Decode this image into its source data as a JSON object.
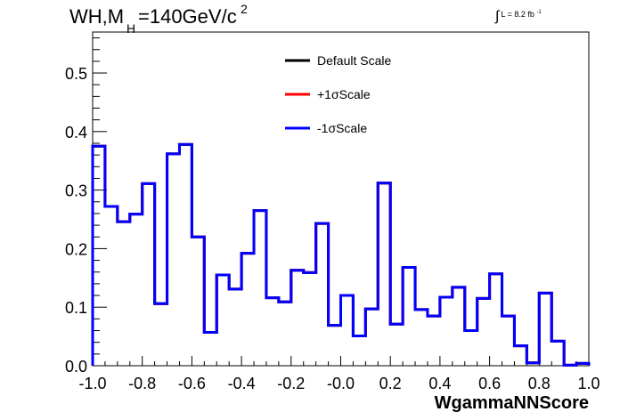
{
  "header": {
    "title_main": "WH,M",
    "title_sub": "H",
    "title_rest": "=140GeV/c",
    "title_sup": "2",
    "lumi_label": "L = 8.2 fb",
    "lumi_sup": "-1"
  },
  "chart_data": {
    "type": "line",
    "xlabel": "WgammaNNScore",
    "ylabel": "",
    "xlim": [
      -1.0,
      1.0
    ],
    "ylim": [
      0.0,
      0.57
    ],
    "grid": false,
    "legend_position": "top-right",
    "x_ticks": [
      "-1.0",
      "-0.8",
      "-0.6",
      "-0.4",
      "-0.2",
      "-0.0",
      "0.2",
      "0.4",
      "0.6",
      "0.8",
      "1.0"
    ],
    "y_ticks": [
      "0.0",
      "0.1",
      "0.2",
      "0.3",
      "0.4",
      "0.5"
    ],
    "bin_edges": [
      -1.0,
      -0.95,
      -0.9,
      -0.85,
      -0.8,
      -0.75,
      -0.7,
      -0.65,
      -0.6,
      -0.55,
      -0.5,
      -0.45,
      -0.4,
      -0.35,
      -0.3,
      -0.25,
      -0.2,
      -0.15,
      -0.1,
      -0.05,
      0.0,
      0.05,
      0.1,
      0.15,
      0.2,
      0.25,
      0.3,
      0.35,
      0.4,
      0.45,
      0.5,
      0.55,
      0.6,
      0.65,
      0.7,
      0.75,
      0.8,
      0.85,
      0.9,
      0.95,
      1.0
    ],
    "series": [
      {
        "name": "Default Scale",
        "color": "#000000",
        "values": [
          0.375,
          0.272,
          0.246,
          0.259,
          0.311,
          0.106,
          0.362,
          0.378,
          0.22,
          0.057,
          0.155,
          0.131,
          0.192,
          0.265,
          0.116,
          0.109,
          0.163,
          0.159,
          0.243,
          0.069,
          0.12,
          0.051,
          0.097,
          0.312,
          0.071,
          0.168,
          0.096,
          0.085,
          0.117,
          0.134,
          0.06,
          0.115,
          0.157,
          0.085,
          0.034,
          0.005,
          0.124,
          0.042,
          0.001,
          0.004
        ]
      },
      {
        "name": "+1σScale",
        "color": "#ff0000",
        "values": [
          0.375,
          0.272,
          0.246,
          0.259,
          0.311,
          0.106,
          0.362,
          0.378,
          0.22,
          0.057,
          0.155,
          0.131,
          0.192,
          0.265,
          0.116,
          0.109,
          0.163,
          0.159,
          0.243,
          0.069,
          0.12,
          0.051,
          0.097,
          0.312,
          0.071,
          0.168,
          0.096,
          0.085,
          0.117,
          0.134,
          0.06,
          0.115,
          0.157,
          0.085,
          0.034,
          0.005,
          0.124,
          0.042,
          0.001,
          0.004
        ]
      },
      {
        "name": "-1σScale",
        "color": "#0000ff",
        "values": [
          0.375,
          0.272,
          0.246,
          0.259,
          0.311,
          0.106,
          0.362,
          0.378,
          0.22,
          0.057,
          0.155,
          0.131,
          0.192,
          0.265,
          0.116,
          0.109,
          0.163,
          0.159,
          0.243,
          0.069,
          0.12,
          0.051,
          0.097,
          0.312,
          0.071,
          0.168,
          0.096,
          0.085,
          0.117,
          0.134,
          0.06,
          0.115,
          0.157,
          0.085,
          0.034,
          0.005,
          0.124,
          0.042,
          0.001,
          0.004
        ]
      }
    ]
  }
}
